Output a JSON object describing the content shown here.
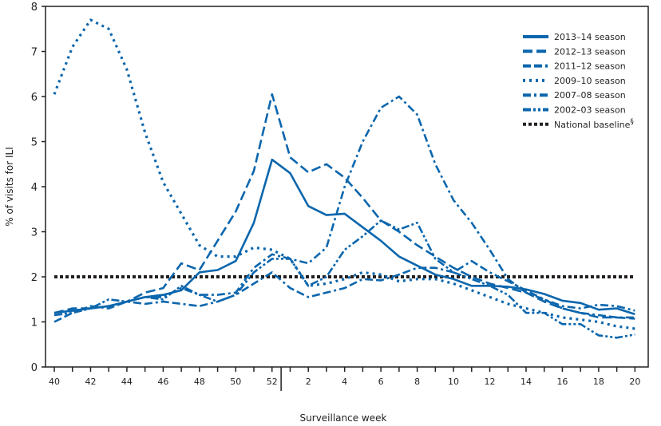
{
  "chart_data": {
    "type": "line",
    "xlabel": "Surveillance week",
    "ylabel": "% of visits for ILI",
    "ylim": [
      0,
      8
    ],
    "yticks": [
      "0",
      "1",
      "2",
      "3",
      "4",
      "5",
      "6",
      "7",
      "8"
    ],
    "grid": false,
    "legend_position": "top-right",
    "color": "#0b66ad",
    "baseline_color": "#231f20",
    "x": [
      40,
      41,
      42,
      43,
      44,
      45,
      46,
      47,
      48,
      49,
      50,
      51,
      52,
      1,
      2,
      3,
      4,
      5,
      6,
      7,
      8,
      9,
      10,
      11,
      12,
      13,
      14,
      15,
      16,
      17,
      18,
      19,
      20
    ],
    "xtick_labels": [
      "40",
      "42",
      "44",
      "46",
      "48",
      "50",
      "52",
      "2",
      "4",
      "6",
      "8",
      "10",
      "12",
      "14",
      "16",
      "18",
      "20"
    ],
    "series": [
      {
        "name": "2013–14 season",
        "dash": "solid",
        "values": [
          1.2,
          1.25,
          1.3,
          1.35,
          1.45,
          1.55,
          1.6,
          1.7,
          2.1,
          2.15,
          2.35,
          3.2,
          4.6,
          4.3,
          3.57,
          3.37,
          3.4,
          3.1,
          2.8,
          2.45,
          2.25,
          2.05,
          1.95,
          1.8,
          1.8,
          1.78,
          1.72,
          1.62,
          1.47,
          1.42,
          1.27,
          1.3,
          1.17
        ]
      },
      {
        "name": "2012–13 season",
        "dash": "long-dash",
        "values": [
          1.2,
          1.3,
          1.3,
          1.35,
          1.45,
          1.65,
          1.75,
          2.3,
          2.15,
          2.8,
          3.45,
          4.35,
          6.05,
          4.65,
          4.32,
          4.5,
          4.2,
          3.75,
          3.25,
          3.0,
          2.7,
          2.45,
          2.2,
          2.0,
          1.85,
          1.75,
          1.65,
          1.45,
          1.3,
          1.2,
          1.1,
          1.1,
          1.07
        ]
      },
      {
        "name": "2011–12 season",
        "dash": "dash-dash-dot",
        "values": [
          1.0,
          1.2,
          1.35,
          1.3,
          1.45,
          1.4,
          1.45,
          1.4,
          1.35,
          1.45,
          1.6,
          1.85,
          2.1,
          1.75,
          1.55,
          1.65,
          1.75,
          1.95,
          1.92,
          2.05,
          2.2,
          2.2,
          2.1,
          2.35,
          2.1,
          1.9,
          1.7,
          1.5,
          1.3,
          1.2,
          1.15,
          1.1,
          1.1
        ]
      },
      {
        "name": "2009–10 season",
        "dash": "dotted",
        "values": [
          6.05,
          7.1,
          7.7,
          7.5,
          6.6,
          5.2,
          4.1,
          3.4,
          2.7,
          2.45,
          2.45,
          2.65,
          2.6,
          2.4,
          1.8,
          1.85,
          1.95,
          2.1,
          2.05,
          1.9,
          1.95,
          1.95,
          1.85,
          1.7,
          1.55,
          1.4,
          1.3,
          1.2,
          1.1,
          1.05,
          1.0,
          0.9,
          0.85
        ]
      },
      {
        "name": "2007–08 season",
        "dash": "dash-dot",
        "values": [
          1.2,
          1.25,
          1.3,
          1.35,
          1.45,
          1.55,
          1.55,
          1.75,
          1.6,
          1.6,
          1.65,
          2.2,
          2.5,
          2.4,
          2.3,
          2.65,
          4.0,
          5.0,
          5.75,
          6.0,
          5.6,
          4.5,
          3.7,
          3.2,
          2.6,
          1.95,
          1.65,
          1.5,
          1.35,
          1.3,
          1.38,
          1.35,
          1.25
        ]
      },
      {
        "name": "2002–03 season",
        "dash": "dash-dot-dot",
        "values": [
          1.15,
          1.2,
          1.3,
          1.5,
          1.45,
          1.55,
          1.5,
          1.8,
          1.6,
          1.45,
          1.6,
          2.1,
          2.4,
          2.4,
          1.8,
          2.0,
          2.6,
          2.9,
          3.25,
          3.05,
          3.2,
          2.4,
          2.1,
          1.95,
          1.8,
          1.6,
          1.2,
          1.2,
          0.95,
          0.95,
          0.7,
          0.65,
          0.72
        ]
      }
    ],
    "baseline": {
      "name": "National baseline",
      "footnote": "§",
      "value": 2.0
    }
  }
}
